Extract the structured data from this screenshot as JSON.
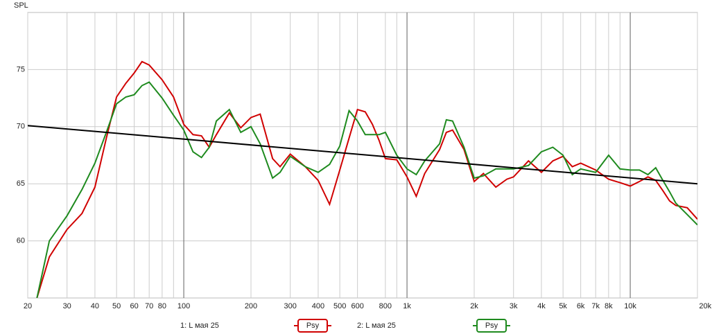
{
  "chart_data": {
    "type": "line",
    "y_label": "SPL",
    "log_x": true,
    "xlim": [
      20,
      20000
    ],
    "ylim": [
      55,
      80
    ],
    "xticks": [
      20,
      30,
      40,
      50,
      60,
      70,
      80,
      100,
      200,
      300,
      400,
      500,
      600,
      800,
      {
        "value": 1000,
        "label": "1k"
      },
      {
        "value": 2000,
        "label": "2k"
      },
      {
        "value": 3000,
        "label": "3k"
      },
      {
        "value": 4000,
        "label": "4k"
      },
      {
        "value": 5000,
        "label": "5k"
      },
      {
        "value": 6000,
        "label": "6k"
      },
      {
        "value": 7000,
        "label": "7k"
      },
      {
        "value": 8000,
        "label": "8k"
      },
      {
        "value": 10000,
        "label": "10k"
      },
      {
        "value": 20000,
        "label": "20kHz"
      }
    ],
    "x_minor_grid": [
      90,
      900,
      9000
    ],
    "x_major_grid": [
      100,
      1000,
      10000
    ],
    "yticks": [
      60,
      65,
      70,
      75
    ],
    "grid": true,
    "x": [
      22,
      25,
      30,
      35,
      40,
      45,
      50,
      55,
      60,
      65,
      70,
      80,
      90,
      100,
      110,
      120,
      130,
      140,
      160,
      180,
      200,
      220,
      250,
      270,
      300,
      350,
      400,
      450,
      500,
      550,
      600,
      650,
      700,
      750,
      800,
      900,
      1000,
      1100,
      1200,
      1400,
      1500,
      1600,
      1800,
      2000,
      2200,
      2500,
      2800,
      3000,
      3500,
      4000,
      4500,
      5000,
      5500,
      6000,
      7000,
      8000,
      9000,
      10000,
      11000,
      12000,
      13000,
      14000,
      15000,
      16000,
      18000,
      20000
    ],
    "series": [
      {
        "name": "1: L мая 25",
        "label": "Psy",
        "color": "#d00000",
        "values": [
          55,
          58.6,
          61.0,
          62.4,
          64.7,
          69.0,
          72.6,
          73.8,
          74.7,
          75.7,
          75.4,
          74.1,
          72.6,
          70.2,
          69.3,
          69.2,
          68.2,
          69.3,
          71.2,
          69.9,
          70.8,
          71.1,
          67.2,
          66.5,
          67.6,
          66.5,
          65.3,
          63.2,
          66.2,
          69.0,
          71.5,
          71.3,
          70.2,
          68.8,
          67.2,
          67.1,
          65.6,
          63.9,
          65.9,
          68.0,
          69.5,
          69.7,
          68.0,
          65.2,
          65.9,
          64.7,
          65.4,
          65.6,
          67.0,
          66.0,
          67.0,
          67.4,
          66.5,
          66.8,
          66.2,
          65.4,
          65.1,
          64.8,
          65.2,
          65.6,
          65.3,
          64.4,
          63.5,
          63.1,
          62.9,
          61.9
        ]
      },
      {
        "name": "2: L мая 25",
        "label": "Psy",
        "color": "#1e8a1e",
        "values": [
          55,
          60.0,
          62.2,
          64.5,
          66.8,
          69.5,
          72.0,
          72.6,
          72.8,
          73.6,
          73.9,
          72.5,
          71.0,
          69.7,
          67.8,
          67.3,
          68.2,
          70.5,
          71.5,
          69.5,
          70.0,
          68.5,
          65.5,
          66.0,
          67.4,
          66.5,
          66.0,
          66.7,
          68.3,
          71.4,
          70.5,
          69.3,
          69.3,
          69.3,
          69.5,
          67.5,
          66.3,
          65.8,
          67.0,
          68.5,
          70.6,
          70.5,
          68.2,
          65.5,
          65.7,
          66.3,
          66.3,
          66.3,
          66.6,
          67.8,
          68.2,
          67.5,
          65.8,
          66.3,
          66.0,
          67.5,
          66.3,
          66.2,
          66.2,
          65.8,
          66.4,
          65.3,
          64.3,
          63.3,
          62.3,
          61.4
        ]
      },
      {
        "color": "#000000",
        "x": [
          20,
          20000
        ],
        "values": [
          70.1,
          65.0
        ]
      }
    ]
  }
}
